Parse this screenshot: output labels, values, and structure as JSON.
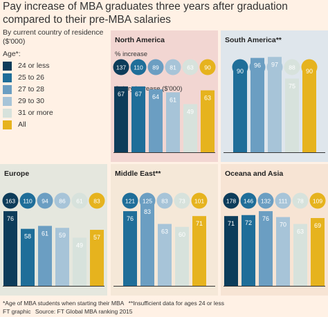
{
  "title": "Pay increase of MBA graduates three years after graduation compared to their pre-MBA salaries",
  "subtitle": "By current country of residence ($'000)",
  "legend": {
    "title": "Age*:",
    "items": [
      {
        "label": "24 or less",
        "color": "#0d3c5a"
      },
      {
        "label": "25 to 26",
        "color": "#1f6e99"
      },
      {
        "label": "27 to 28",
        "color": "#6b9ec2"
      },
      {
        "label": "29 to 30",
        "color": "#a7c4d8"
      },
      {
        "label": "31 or more",
        "color": "#d7e2dc"
      },
      {
        "label": "All",
        "color": "#e6b31e"
      }
    ]
  },
  "footnote": {
    "line1a": "*Age of MBA students when starting their MBA",
    "line1b": "**Insufficient data for ages 24 or less",
    "line2a": "FT graphic",
    "line2b": "Source: FT Global MBA ranking 2015"
  },
  "chart_data": [
    {
      "type": "bar",
      "region": "North America",
      "background": "#f2d6d2",
      "pct_label": "% increase",
      "salary_label": "Salary increase ($'000)",
      "categories": [
        "24 or less",
        "25 to 26",
        "27 to 28",
        "29 to 30",
        "31 or more",
        "All"
      ],
      "pct_increase": [
        137,
        110,
        89,
        81,
        63,
        90
      ],
      "salary_increase": [
        67,
        67,
        64,
        61,
        49,
        63
      ]
    },
    {
      "type": "bar",
      "region": "South America**",
      "background": "#dfe6ec",
      "pct_label": "",
      "salary_label": "",
      "categories": [
        "25 to 26",
        "27 to 28",
        "29 to 30",
        "31 or more",
        "All"
      ],
      "pct_increase": [
        130,
        131,
        113,
        88,
        113
      ],
      "salary_increase": [
        90,
        96,
        97,
        75,
        90
      ]
    },
    {
      "type": "bar",
      "region": "Europe",
      "background": "#e5e7de",
      "pct_label": "",
      "salary_label": "",
      "categories": [
        "24 or less",
        "25 to 26",
        "27 to 28",
        "29 to 30",
        "31 or more",
        "All"
      ],
      "pct_increase": [
        163,
        110,
        94,
        86,
        61,
        83
      ],
      "salary_increase": [
        76,
        58,
        61,
        59,
        49,
        57
      ]
    },
    {
      "type": "bar",
      "region": "Middle East**",
      "background": "#f5e8d8",
      "pct_label": "",
      "salary_label": "",
      "categories": [
        "25 to 26",
        "27 to 28",
        "29 to 30",
        "31 or more",
        "All"
      ],
      "pct_increase": [
        121,
        125,
        83,
        73,
        101
      ],
      "salary_increase": [
        76,
        83,
        63,
        60,
        71
      ]
    },
    {
      "type": "bar",
      "region": "Oceana and Asia",
      "background": "#f7e4d4",
      "pct_label": "",
      "salary_label": "",
      "categories": [
        "24 or less",
        "25 to 26",
        "27 to 28",
        "29 to 30",
        "31 or more",
        "All"
      ],
      "pct_increase": [
        178,
        146,
        132,
        111,
        78,
        109
      ],
      "salary_increase": [
        71,
        72,
        76,
        70,
        63,
        69
      ]
    }
  ]
}
